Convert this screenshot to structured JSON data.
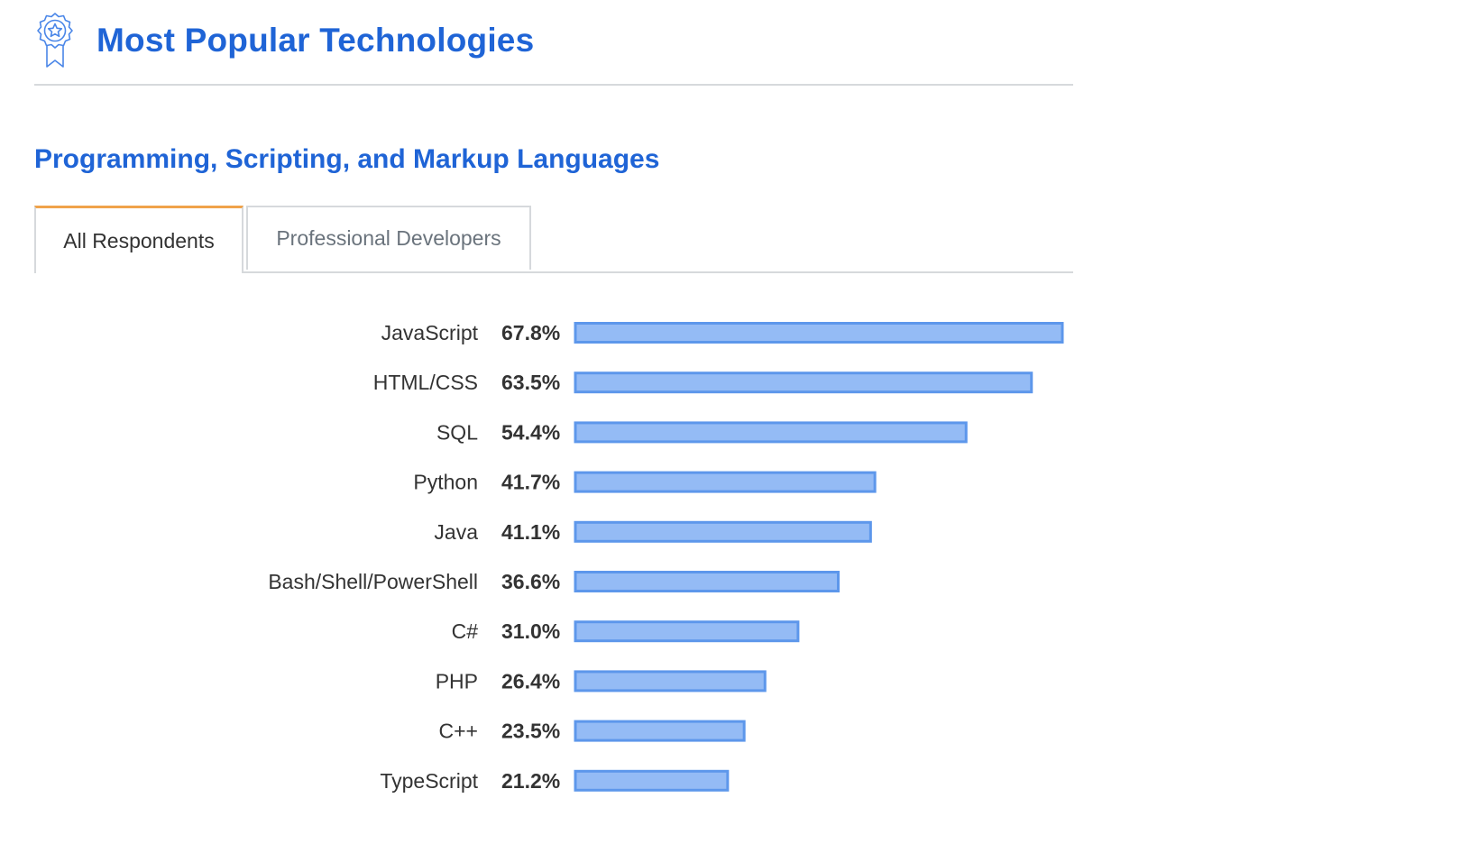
{
  "header": {
    "title": "Most Popular Technologies",
    "icon": "award-ribbon-icon",
    "accent_color": "#1f64d6"
  },
  "section": {
    "title": "Programming, Scripting, and Markup Languages"
  },
  "tabs": [
    {
      "label": "All Respondents",
      "active": true
    },
    {
      "label": "Professional Developers",
      "active": false
    }
  ],
  "chart_data": {
    "type": "bar",
    "orientation": "horizontal",
    "categories": [
      "JavaScript",
      "HTML/CSS",
      "SQL",
      "Python",
      "Java",
      "Bash/Shell/PowerShell",
      "C#",
      "PHP",
      "C++",
      "TypeScript"
    ],
    "values": [
      67.8,
      63.5,
      54.4,
      41.7,
      41.1,
      36.6,
      31.0,
      26.4,
      23.5,
      21.2
    ],
    "value_labels": [
      "67.8%",
      "63.5%",
      "54.4%",
      "41.7%",
      "41.1%",
      "36.6%",
      "31.0%",
      "26.4%",
      "23.5%",
      "21.2%"
    ],
    "unit": "%",
    "bar_fill": "#94bbf5",
    "bar_stroke": "#5d97eb",
    "grid": false,
    "legend": "none"
  }
}
